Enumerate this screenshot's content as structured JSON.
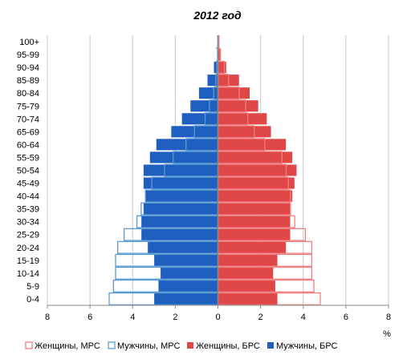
{
  "chart_data": {
    "type": "bar",
    "orientation": "horizontal",
    "title": "2012 год",
    "xlabel": "%",
    "ylabel": "",
    "xlim": [
      -8,
      8
    ],
    "x_ticks": [
      -8,
      -6,
      -4,
      -2,
      0,
      2,
      4,
      6,
      8
    ],
    "x_tick_labels": [
      "8",
      "6",
      "4",
      "2",
      "0",
      "2",
      "4",
      "6",
      "8"
    ],
    "grid": true,
    "legend_position": "bottom",
    "categories": [
      "0-4",
      "5-9",
      "10-14",
      "15-19",
      "20-24",
      "25-29",
      "30-34",
      "35-39",
      "40-44",
      "45-49",
      "50-54",
      "55-59",
      "60-64",
      "65-69",
      "70-74",
      "75-79",
      "80-84",
      "85-89",
      "90-94",
      "95-99",
      "100+"
    ],
    "series": [
      {
        "name": "Женщины, МРС",
        "side": "right",
        "style": "outline",
        "color": "#f08080",
        "values": [
          4.8,
          4.5,
          4.4,
          4.4,
          4.4,
          4.1,
          3.6,
          3.4,
          3.4,
          3.3,
          3.2,
          3.0,
          2.2,
          1.7,
          1.4,
          1.3,
          1.0,
          0.5,
          0.3,
          0.1,
          0.05
        ]
      },
      {
        "name": "Мужчины, МРС",
        "side": "left",
        "style": "outline",
        "color": "#5b9bd5",
        "values": [
          5.1,
          4.9,
          4.8,
          4.8,
          4.7,
          4.4,
          3.8,
          3.6,
          3.4,
          3.1,
          2.5,
          2.1,
          1.5,
          1.1,
          0.6,
          0.4,
          0.2,
          0.1,
          0.05,
          0.02,
          0.01
        ]
      },
      {
        "name": "Женщины, БРС",
        "side": "right",
        "style": "fill",
        "color": "#e04848",
        "values": [
          2.8,
          2.7,
          2.6,
          2.8,
          3.2,
          3.4,
          3.4,
          3.4,
          3.5,
          3.6,
          3.7,
          3.5,
          3.2,
          2.5,
          2.3,
          1.9,
          1.5,
          1.0,
          0.4,
          0.15,
          0.05
        ]
      },
      {
        "name": "Мужчины, БРС",
        "side": "left",
        "style": "fill",
        "color": "#1f5fbf",
        "values": [
          3.0,
          2.8,
          2.7,
          3.0,
          3.3,
          3.6,
          3.6,
          3.5,
          3.4,
          3.5,
          3.5,
          3.2,
          2.9,
          2.2,
          1.7,
          1.3,
          0.9,
          0.5,
          0.2,
          0.05,
          0.02
        ]
      }
    ]
  }
}
